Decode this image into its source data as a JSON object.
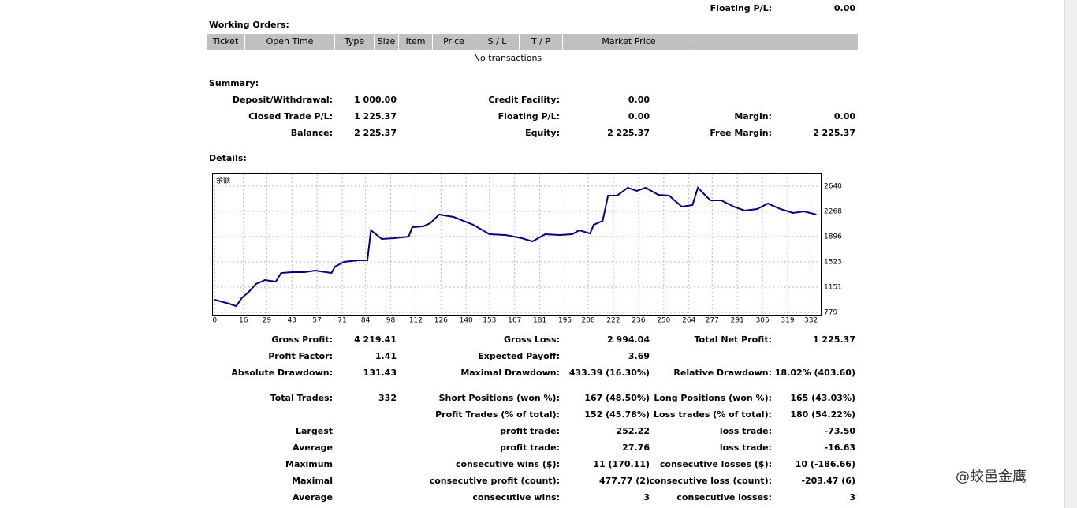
{
  "header": {
    "floating_label": "Floating P/L:",
    "floating_value": "0.00"
  },
  "working_orders": {
    "title": "Working Orders:",
    "columns": [
      "Ticket",
      "Open Time",
      "Type",
      "Size",
      "Item",
      "Price",
      "S / L",
      "T / P",
      "Market Price"
    ],
    "empty": "No transactions"
  },
  "summary": {
    "title": "Summary:",
    "rows": [
      [
        [
          "Deposit/Withdrawal:",
          "1 000.00"
        ],
        [
          "Credit Facility:",
          "0.00"
        ],
        null
      ],
      [
        [
          "Closed Trade P/L:",
          "1 225.37"
        ],
        [
          "Floating P/L:",
          "0.00"
        ],
        [
          "Margin:",
          "0.00"
        ]
      ],
      [
        [
          "Balance:",
          "2 225.37"
        ],
        [
          "Equity:",
          "2 225.37"
        ],
        [
          "Free Margin:",
          "2 225.37"
        ]
      ]
    ]
  },
  "details": {
    "title": "Details:",
    "chart_data": {
      "type": "line",
      "x": [
        0,
        8,
        12,
        15,
        19,
        23,
        28,
        34,
        37,
        43,
        50,
        56,
        65,
        67,
        72,
        80,
        85,
        87,
        93,
        100,
        108,
        110,
        116,
        120,
        125,
        133,
        144,
        153,
        162,
        171,
        177,
        184,
        192,
        199,
        203,
        209,
        211,
        216,
        219,
        224,
        230,
        235,
        240,
        247,
        253,
        260,
        266,
        269,
        276,
        282,
        289,
        295,
        302,
        308,
        315,
        322,
        328,
        335
      ],
      "series": [
        {
          "name": "余额",
          "color": "#000080",
          "values": [
            965,
            907,
            872,
            988,
            1081,
            1198,
            1256,
            1232,
            1360,
            1372,
            1372,
            1395,
            1360,
            1453,
            1523,
            1546,
            1546,
            1988,
            1860,
            1872,
            1895,
            2035,
            2046,
            2093,
            2221,
            2186,
            2069,
            1930,
            1918,
            1872,
            1825,
            1930,
            1918,
            1930,
            1988,
            1941,
            2069,
            2128,
            2500,
            2500,
            2616,
            2570,
            2616,
            2511,
            2500,
            2337,
            2360,
            2616,
            2430,
            2430,
            2337,
            2279,
            2302,
            2383,
            2302,
            2244,
            2267,
            2221
          ]
        }
      ],
      "xlim": [
        -1,
        337
      ],
      "ylim": [
        756,
        2825
      ],
      "xticks": [
        0,
        16,
        29,
        43,
        57,
        71,
        84,
        98,
        112,
        126,
        140,
        153,
        167,
        181,
        195,
        208,
        222,
        236,
        250,
        264,
        277,
        291,
        305,
        319,
        332
      ],
      "yticks": [
        779,
        1151,
        1523,
        1896,
        2268,
        2640
      ],
      "grid": true
    },
    "rows": [
      [
        [
          "Gross Profit:",
          "4 219.41"
        ],
        [
          "Gross Loss:",
          "2 994.04"
        ],
        [
          "Total Net Profit:",
          "1 225.37"
        ]
      ],
      [
        [
          "Profit Factor:",
          "1.41"
        ],
        [
          "Expected Payoff:",
          "3.69"
        ],
        null
      ],
      [
        [
          "Absolute Drawdown:",
          "131.43"
        ],
        [
          "Maximal Drawdown:",
          "433.39 (16.30%)"
        ],
        [
          "Relative Drawdown:",
          "18.02% (403.60)"
        ]
      ],
      [
        [
          "Total Trades:",
          "332"
        ],
        [
          "Short Positions (won %):",
          "167 (48.50%)"
        ],
        [
          "Long Positions (won %):",
          "165 (43.03%)"
        ]
      ],
      [
        null,
        [
          "Profit Trades (% of total):",
          "152 (45.78%)"
        ],
        [
          "Loss trades (% of total):",
          "180 (54.22%)"
        ]
      ],
      [
        [
          "Largest"
        ],
        [
          "profit trade:",
          "252.22"
        ],
        [
          "loss trade:",
          "-73.50"
        ]
      ],
      [
        [
          "Average"
        ],
        [
          "profit trade:",
          "27.76"
        ],
        [
          "loss trade:",
          "-16.63"
        ]
      ],
      [
        [
          "Maximum"
        ],
        [
          "consecutive wins ($):",
          "11 (170.11)"
        ],
        [
          "consecutive losses ($):",
          "10 (-186.66)"
        ]
      ],
      [
        [
          "Maximal"
        ],
        [
          "consecutive profit (count):",
          "477.77 (2)"
        ],
        [
          "consecutive loss (count):",
          "-203.47 (6)"
        ]
      ],
      [
        [
          "Average"
        ],
        [
          "consecutive wins:",
          "3"
        ],
        [
          "consecutive losses:",
          "3"
        ]
      ]
    ]
  },
  "watermark": "@蛟邑金鹰"
}
